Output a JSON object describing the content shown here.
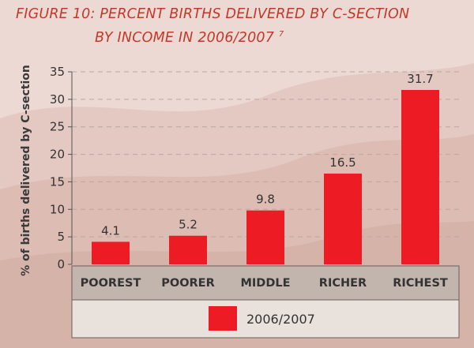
{
  "title": {
    "line1": "FIGURE 10: PERCENT BIRTHS DELIVERED BY C-SECTION",
    "line2": "BY INCOME IN 2006/2007",
    "footnote": "7"
  },
  "colors": {
    "bar": "#ed1c24",
    "title": "#c0392b",
    "panel": "#c2b5ae",
    "legend_panel": "#e9e1dc",
    "background": "#ecd9d3"
  },
  "chart_data": {
    "type": "bar",
    "categories": [
      "POOREST",
      "POORER",
      "MIDDLE",
      "RICHER",
      "RICHEST"
    ],
    "series": [
      {
        "name": "2006/2007",
        "values": [
          4.1,
          5.2,
          9.8,
          16.5,
          31.7
        ]
      }
    ],
    "data_labels": [
      "4.1",
      "5.2",
      "9.8",
      "16.5",
      "31.7"
    ],
    "ylabel": "% of births delivered by C-section",
    "ylim": [
      0,
      35
    ],
    "yticks": [
      0,
      5,
      10,
      15,
      20,
      25,
      30,
      35
    ],
    "grid": true,
    "legend": "bottom"
  }
}
